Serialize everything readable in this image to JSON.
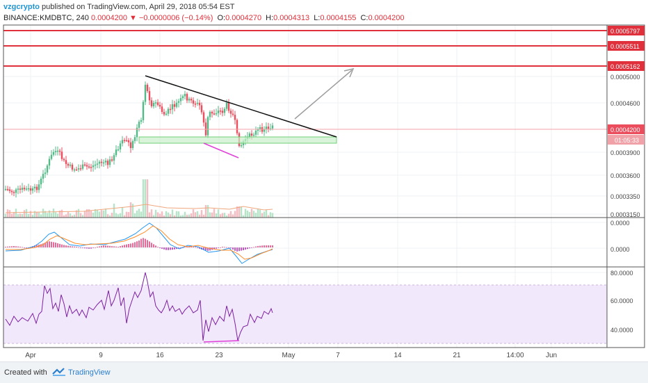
{
  "header": {
    "author": "vzgcrypto",
    "published_text": "published on TradingView.com, April 29, 2018 05:54 EST",
    "symbol": "BINANCE:KMDBTC, 240",
    "last": "0.0004200",
    "change": "−0.0000006 (−0.14%)",
    "open_label": "O:",
    "open": "0.0004270",
    "high_label": "H:",
    "high": "0.0004313",
    "low_label": "L:",
    "low": "0.0004155",
    "close_label": "C:",
    "close": "0.0004200"
  },
  "price_axis": {
    "ticks": [
      "0.0005000",
      "0.0004600",
      "0.0004200",
      "0.0003900",
      "0.0003600",
      "0.0003350",
      "0.0003150"
    ],
    "resistance_labels": [
      "0.0005797",
      "0.0005511",
      "0.0005162"
    ],
    "current_label": "0.0004200",
    "countdown": "01:05:33"
  },
  "macd_axis": {
    "ticks": [
      "0.0000",
      "0.0000"
    ]
  },
  "rsi_axis": {
    "ticks": [
      "80.0000",
      "60.0000",
      "40.0000"
    ]
  },
  "time_axis": {
    "ticks": [
      "Apr",
      "9",
      "16",
      "23",
      "May",
      "7",
      "14",
      "21",
      "14:00",
      "Jun"
    ]
  },
  "footer": {
    "created_with": "Created with",
    "brand": "TradingView"
  },
  "colors": {
    "up": "#53b987",
    "down": "#eb4d5c",
    "resistance": "#e0303b",
    "support_zone": "#9fe0a5",
    "macd": "#2196f3",
    "signal": "#ff8c28",
    "rsi": "#7b1fa2",
    "rsi_band": "#f2e8fc",
    "divergence": "#e040d8",
    "trendline": "#111111",
    "projection": "#9e9e9e"
  }
}
